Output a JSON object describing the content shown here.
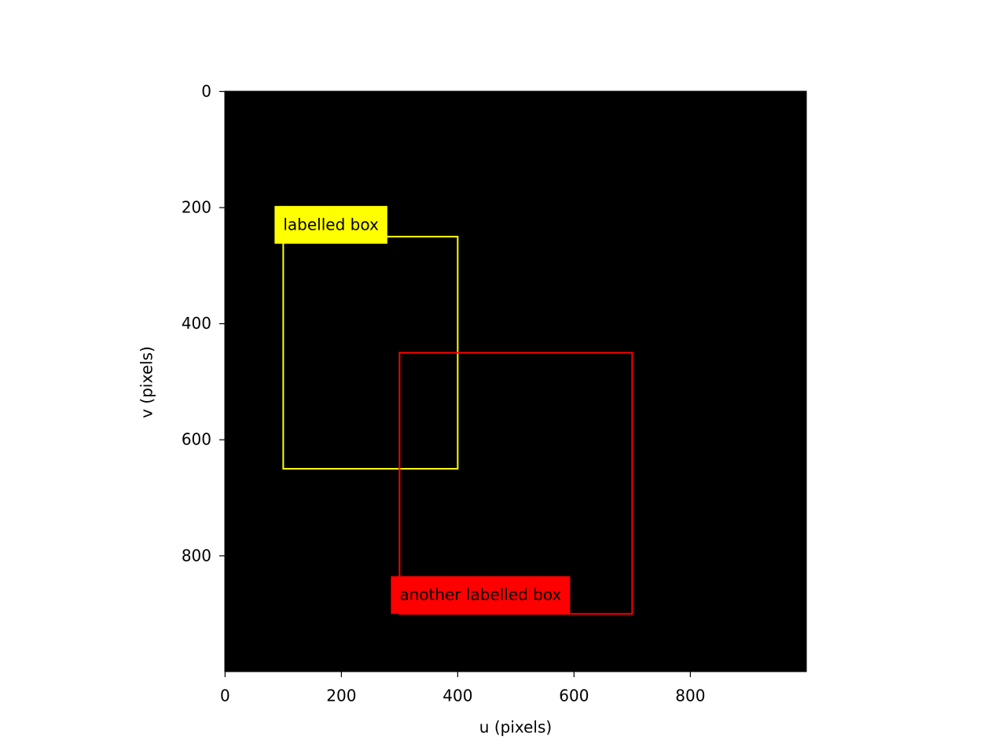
{
  "chart_data": {
    "type": "image-boxes",
    "background": "#000000",
    "xlabel": "u (pixels)",
    "ylabel": "v (pixels)",
    "xlim": [
      -0.5,
      999.5
    ],
    "ylim": [
      999.5,
      -0.5
    ],
    "xticks": [
      0,
      200,
      400,
      600,
      800
    ],
    "yticks": [
      0,
      200,
      400,
      600,
      800
    ],
    "boxes": [
      {
        "label": "labelled box",
        "color": "#ffff00",
        "x0": 100,
        "y0": 250,
        "x1": 400,
        "y1": 650,
        "label_position": "top"
      },
      {
        "label": "another labelled box",
        "color": "#ff0000",
        "x0": 300,
        "y0": 450,
        "x1": 700,
        "y1": 900,
        "label_position": "bottom"
      }
    ]
  }
}
